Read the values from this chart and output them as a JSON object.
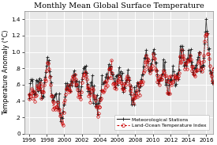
{
  "title": "Monthly Mean Global Surface Temperature",
  "ylabel": "Temperature Anomaly (°C)",
  "xlim": [
    1995.5,
    2016.8
  ],
  "ylim": [
    0.0,
    1.5
  ],
  "yticks": [
    0.0,
    0.2,
    0.4,
    0.6,
    0.8,
    1.0,
    1.2,
    1.4
  ],
  "ytick_labels": [
    "0",
    ".2",
    ".4",
    ".6",
    ".8",
    "1.0",
    "1.2",
    "1.4"
  ],
  "xticks": [
    1996,
    1998,
    2000,
    2002,
    2004,
    2006,
    2008,
    2010,
    2012,
    2014,
    2016
  ],
  "bg_color": "#e8e8e8",
  "grid_color": "#ffffff",
  "met_color": "#222222",
  "loti_color": "#cc0000",
  "title_fontsize": 7.0,
  "label_fontsize": 5.8,
  "tick_fontsize": 5.2
}
